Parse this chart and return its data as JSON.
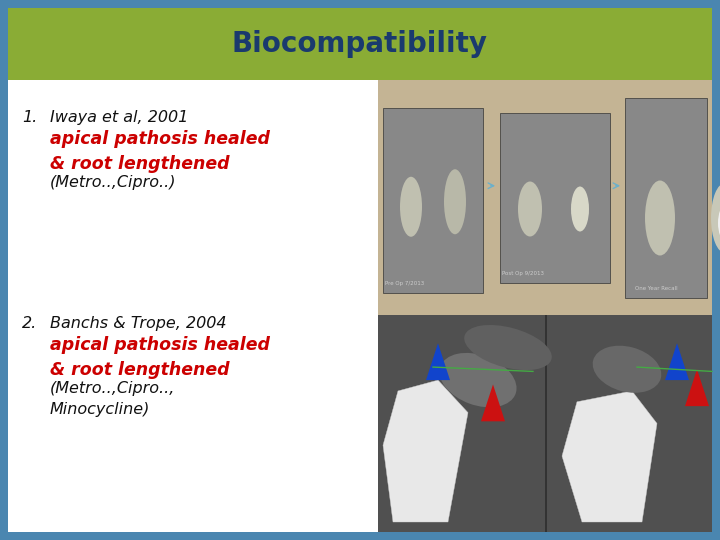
{
  "title": "Biocompatibility",
  "title_color": "#1a3a6e",
  "title_bg_color": "#8aac35",
  "slide_bg_color": "#4a86b0",
  "content_bg_color": "#ffffff",
  "item1_normal": "Iwaya et al, 2001",
  "item1_bold_italic": "apical pathosis healed\n& root lengthened",
  "item1_normal2": "(Metro..,Cipro..)",
  "item2_normal": "Banchs & Trope, 2004",
  "item2_bold_italic": "apical pathosis healed\n& root lengthened",
  "item2_normal2": "(Metro..,Cipro..,\nMinocycline)",
  "red_color": "#cc0000",
  "text_color": "#111111",
  "font_size_title": 20,
  "font_size_item": 11.5,
  "font_size_bold": 12.5,
  "top_img_bg": "#c4b494",
  "border_color": "#4a86b0",
  "border_width": 8
}
